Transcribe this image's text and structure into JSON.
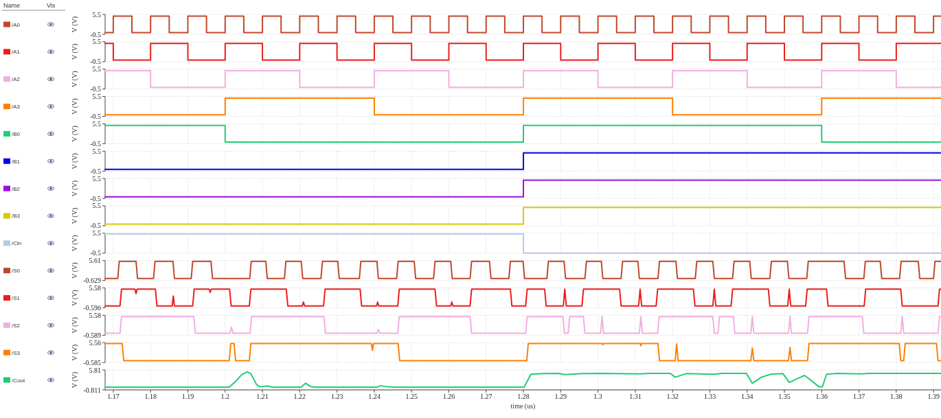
{
  "chart_data": [
    {
      "type": "step",
      "ylabel": "V (V)",
      "annotations": [
        "Name",
        "Vis"
      ],
      "xlim": [
        1.1678,
        1.392
      ],
      "xticks": [
        1.17,
        1.18,
        1.19,
        1.2,
        1.21,
        1.22,
        1.23,
        1.24,
        1.25,
        1.26,
        1.27,
        1.28,
        1.29,
        1.3,
        1.31,
        1.32,
        1.33,
        1.34,
        1.35,
        1.36,
        1.37,
        1.38,
        1.39
      ],
      "ylim": [
        -0.5,
        5.5
      ],
      "yticks": [
        -0.5,
        5.5
      ],
      "grid": true,
      "legend": "left",
      "tick_labels": "y",
      "series": [
        {
          "name": "/A0",
          "color": "#c0482c",
          "x": [
            1.1678,
            1.17,
            1.175,
            1.18,
            1.185,
            1.19,
            1.195,
            1.2,
            1.205,
            1.21,
            1.215,
            1.22,
            1.225,
            1.23,
            1.235,
            1.24,
            1.245,
            1.25,
            1.255,
            1.26,
            1.265,
            1.27,
            1.275,
            1.28,
            1.285,
            1.29,
            1.295,
            1.3,
            1.305,
            1.31,
            1.315,
            1.32,
            1.325,
            1.33,
            1.335,
            1.34,
            1.345,
            1.35,
            1.355,
            1.36,
            1.365,
            1.37,
            1.375,
            1.38,
            1.385,
            1.39,
            1.392
          ],
          "values": [
            0,
            5,
            0,
            5,
            0,
            5,
            0,
            5,
            0,
            5,
            0,
            5,
            0,
            5,
            0,
            5,
            0,
            5,
            0,
            5,
            0,
            5,
            0,
            5,
            0,
            5,
            0,
            5,
            0,
            5,
            0,
            5,
            0,
            5,
            0,
            5,
            0,
            5,
            0,
            5,
            0,
            5,
            0,
            5,
            0,
            5,
            5
          ]
        }
      ]
    },
    {
      "type": "step",
      "ylabel": "V (V)",
      "xlim": [
        1.1678,
        1.392
      ],
      "xticks": [
        1.17,
        1.18,
        1.19,
        1.2,
        1.21,
        1.22,
        1.23,
        1.24,
        1.25,
        1.26,
        1.27,
        1.28,
        1.29,
        1.3,
        1.31,
        1.32,
        1.33,
        1.34,
        1.35,
        1.36,
        1.37,
        1.38,
        1.39
      ],
      "ylim": [
        -0.5,
        5.5
      ],
      "yticks": [
        -0.5,
        5.5
      ],
      "grid": true,
      "legend": "left",
      "tick_labels": "y",
      "series": [
        {
          "name": "/A1",
          "color": "#ee1c1c",
          "x": [
            1.1678,
            1.17,
            1.18,
            1.19,
            1.2,
            1.21,
            1.22,
            1.23,
            1.24,
            1.25,
            1.26,
            1.27,
            1.28,
            1.29,
            1.3,
            1.31,
            1.32,
            1.33,
            1.34,
            1.35,
            1.36,
            1.37,
            1.38,
            1.392
          ],
          "values": [
            5,
            0,
            5,
            0,
            5,
            0,
            5,
            0,
            5,
            0,
            5,
            0,
            5,
            0,
            5,
            0,
            5,
            0,
            5,
            0,
            5,
            0,
            5,
            5
          ]
        }
      ]
    },
    {
      "type": "step",
      "ylabel": "V (V)",
      "xlim": [
        1.1678,
        1.392
      ],
      "xticks": [
        1.17,
        1.18,
        1.19,
        1.2,
        1.21,
        1.22,
        1.23,
        1.24,
        1.25,
        1.26,
        1.27,
        1.28,
        1.29,
        1.3,
        1.31,
        1.32,
        1.33,
        1.34,
        1.35,
        1.36,
        1.37,
        1.38,
        1.39
      ],
      "ylim": [
        -0.5,
        5.5
      ],
      "yticks": [
        -0.5,
        5.5
      ],
      "grid": true,
      "legend": "left",
      "tick_labels": "y",
      "series": [
        {
          "name": "/A2",
          "color": "#f0b0e0",
          "x": [
            1.1678,
            1.18,
            1.2,
            1.22,
            1.24,
            1.26,
            1.28,
            1.3,
            1.32,
            1.34,
            1.36,
            1.38,
            1.392
          ],
          "values": [
            5,
            0,
            5,
            0,
            5,
            0,
            5,
            0,
            5,
            0,
            5,
            0,
            0
          ]
        }
      ]
    },
    {
      "type": "step",
      "ylabel": "V (V)",
      "xlim": [
        1.1678,
        1.392
      ],
      "xticks": [
        1.17,
        1.18,
        1.19,
        1.2,
        1.21,
        1.22,
        1.23,
        1.24,
        1.25,
        1.26,
        1.27,
        1.28,
        1.29,
        1.3,
        1.31,
        1.32,
        1.33,
        1.34,
        1.35,
        1.36,
        1.37,
        1.38,
        1.39
      ],
      "ylim": [
        -0.5,
        5.5
      ],
      "yticks": [
        -0.5,
        5.5
      ],
      "grid": true,
      "legend": "left",
      "tick_labels": "y",
      "series": [
        {
          "name": "/A3",
          "color": "#ff8000",
          "x": [
            1.1678,
            1.2,
            1.24,
            1.28,
            1.32,
            1.36,
            1.392
          ],
          "values": [
            0,
            5,
            0,
            5,
            0,
            5,
            5
          ]
        }
      ]
    },
    {
      "type": "step",
      "ylabel": "V (V)",
      "xlim": [
        1.1678,
        1.392
      ],
      "xticks": [
        1.17,
        1.18,
        1.19,
        1.2,
        1.21,
        1.22,
        1.23,
        1.24,
        1.25,
        1.26,
        1.27,
        1.28,
        1.29,
        1.3,
        1.31,
        1.32,
        1.33,
        1.34,
        1.35,
        1.36,
        1.37,
        1.38,
        1.39
      ],
      "ylim": [
        -0.5,
        5.5
      ],
      "yticks": [
        -0.5,
        5.5
      ],
      "grid": true,
      "legend": "left",
      "tick_labels": "y",
      "series": [
        {
          "name": "/B0",
          "color": "#22cc77",
          "x": [
            1.1678,
            1.2,
            1.28,
            1.36,
            1.392
          ],
          "values": [
            5,
            0,
            5,
            0,
            0
          ]
        }
      ]
    },
    {
      "type": "step",
      "ylabel": "V (V)",
      "xlim": [
        1.1678,
        1.392
      ],
      "xticks": [
        1.17,
        1.18,
        1.19,
        1.2,
        1.21,
        1.22,
        1.23,
        1.24,
        1.25,
        1.26,
        1.27,
        1.28,
        1.29,
        1.3,
        1.31,
        1.32,
        1.33,
        1.34,
        1.35,
        1.36,
        1.37,
        1.38,
        1.39
      ],
      "ylim": [
        -0.5,
        5.5
      ],
      "yticks": [
        -0.5,
        5.5
      ],
      "grid": true,
      "legend": "left",
      "tick_labels": "y",
      "series": [
        {
          "name": "/B1",
          "color": "#0000ee",
          "x": [
            1.1678,
            1.28,
            1.392
          ],
          "values": [
            0,
            5,
            5
          ]
        }
      ]
    },
    {
      "type": "step",
      "ylabel": "V (V)",
      "xlim": [
        1.1678,
        1.392
      ],
      "xticks": [
        1.17,
        1.18,
        1.19,
        1.2,
        1.21,
        1.22,
        1.23,
        1.24,
        1.25,
        1.26,
        1.27,
        1.28,
        1.29,
        1.3,
        1.31,
        1.32,
        1.33,
        1.34,
        1.35,
        1.36,
        1.37,
        1.38,
        1.39
      ],
      "ylim": [
        -0.5,
        5.5
      ],
      "yticks": [
        -0.5,
        5.5
      ],
      "grid": true,
      "legend": "left",
      "tick_labels": "y",
      "series": [
        {
          "name": "/B2",
          "color": "#9a10e0",
          "x": [
            1.1678,
            1.28,
            1.392
          ],
          "values": [
            0,
            5,
            5
          ]
        }
      ]
    },
    {
      "type": "step",
      "ylabel": "V (V)",
      "xlim": [
        1.1678,
        1.392
      ],
      "xticks": [
        1.17,
        1.18,
        1.19,
        1.2,
        1.21,
        1.22,
        1.23,
        1.24,
        1.25,
        1.26,
        1.27,
        1.28,
        1.29,
        1.3,
        1.31,
        1.32,
        1.33,
        1.34,
        1.35,
        1.36,
        1.37,
        1.38,
        1.39
      ],
      "ylim": [
        -0.5,
        5.5
      ],
      "yticks": [
        -0.5,
        5.5
      ],
      "grid": true,
      "legend": "left",
      "tick_labels": "y",
      "series": [
        {
          "name": "/B3",
          "color": "#d8c800",
          "x": [
            1.1678,
            1.28,
            1.392
          ],
          "values": [
            0,
            5,
            5
          ]
        }
      ]
    },
    {
      "type": "step",
      "ylabel": "V (V)",
      "xlim": [
        1.1678,
        1.392
      ],
      "xticks": [
        1.17,
        1.18,
        1.19,
        1.2,
        1.21,
        1.22,
        1.23,
        1.24,
        1.25,
        1.26,
        1.27,
        1.28,
        1.29,
        1.3,
        1.31,
        1.32,
        1.33,
        1.34,
        1.35,
        1.36,
        1.37,
        1.38,
        1.39
      ],
      "ylim": [
        -0.5,
        5.5
      ],
      "yticks": [
        -0.5,
        5.5
      ],
      "grid": true,
      "legend": "left",
      "tick_labels": "y",
      "series": [
        {
          "name": "/Cin",
          "color": "#b8c8e0",
          "x": [
            1.1678,
            1.28,
            1.392
          ],
          "values": [
            5.3,
            -0.5,
            -0.5
          ]
        }
      ]
    },
    {
      "type": "line",
      "ylabel": "V (V)",
      "xlim": [
        1.1678,
        1.392
      ],
      "xticks": [
        1.17,
        1.18,
        1.19,
        1.2,
        1.21,
        1.22,
        1.23,
        1.24,
        1.25,
        1.26,
        1.27,
        1.28,
        1.29,
        1.3,
        1.31,
        1.32,
        1.33,
        1.34,
        1.35,
        1.36,
        1.37,
        1.38,
        1.39
      ],
      "ylim": [
        -0.629,
        5.61
      ],
      "yticks": [
        -0.629,
        5.61
      ],
      "grid": true,
      "legend": "left",
      "tick_labels": "y",
      "series": [
        {
          "name": "/S0",
          "color": "#c0482c",
          "x": [
            1.1678,
            1.1712,
            1.1716,
            1.1761,
            1.1765,
            1.1808,
            1.1812,
            1.186,
            1.1864,
            1.1909,
            1.1913,
            1.1962,
            1.1966,
            1.2066,
            1.207,
            1.2109,
            1.2113,
            1.2159,
            1.2163,
            1.2204,
            1.2208,
            1.2257,
            1.2261,
            1.2302,
            1.2306,
            1.236,
            1.2364,
            1.2407,
            1.2411,
            1.246,
            1.2464,
            1.2507,
            1.2511,
            1.2559,
            1.2563,
            1.2605,
            1.2609,
            1.2657,
            1.2661,
            1.2709,
            1.2713,
            1.2761,
            1.2765,
            1.2799,
            1.2803,
            1.2863,
            1.2867,
            1.2909,
            1.2913,
            1.2965,
            1.2969,
            1.3009,
            1.3013,
            1.3062,
            1.3066,
            1.3107,
            1.3111,
            1.3161,
            1.3165,
            1.3209,
            1.3213,
            1.3261,
            1.3265,
            1.3308,
            1.3312,
            1.3361,
            1.3365,
            1.3407,
            1.3411,
            1.3461,
            1.3465,
            1.3508,
            1.3512,
            1.356,
            1.3564,
            1.366,
            1.3664,
            1.3713,
            1.3717,
            1.3757,
            1.3761,
            1.3809,
            1.3813,
            1.3859,
            1.3863,
            1.39,
            1.3904,
            1.392
          ],
          "values": [
            0,
            0,
            5.4,
            5.4,
            0,
            0,
            5.4,
            5.4,
            0,
            0,
            5.4,
            5.4,
            0,
            0,
            5.4,
            5.4,
            0,
            0,
            5.4,
            5.4,
            0,
            0,
            5.4,
            5.4,
            0,
            0,
            5.4,
            5.4,
            0,
            0,
            5.4,
            5.4,
            0,
            0,
            5.4,
            5.4,
            0,
            0,
            5.4,
            5.4,
            0,
            0,
            5.4,
            5.4,
            0,
            0,
            5.4,
            5.4,
            0,
            0,
            5.4,
            5.4,
            0,
            0,
            5.4,
            5.4,
            0,
            0,
            5.4,
            5.4,
            0,
            0,
            5.4,
            5.4,
            0,
            0,
            5.4,
            5.4,
            0,
            0,
            5.4,
            5.4,
            0,
            0,
            5.4,
            5.4,
            0,
            0,
            5.4,
            5.4,
            0,
            0,
            5.4,
            5.4,
            0,
            0,
            5.4,
            5.4
          ]
        }
      ]
    },
    {
      "type": "line",
      "ylabel": "V (V)",
      "xlim": [
        1.1678,
        1.392
      ],
      "xticks": [
        1.17,
        1.18,
        1.19,
        1.2,
        1.21,
        1.22,
        1.23,
        1.24,
        1.25,
        1.26,
        1.27,
        1.28,
        1.29,
        1.3,
        1.31,
        1.32,
        1.33,
        1.34,
        1.35,
        1.36,
        1.37,
        1.38,
        1.39
      ],
      "ylim": [
        -0.596,
        5.58
      ],
      "yticks": [
        -0.596,
        5.58
      ],
      "grid": true,
      "legend": "left",
      "tick_labels": "y",
      "series": [
        {
          "name": "/S1",
          "color": "#ee1c1c",
          "x": [
            1.1678,
            1.1718,
            1.1722,
            1.1758,
            1.1761,
            1.1764,
            1.1813,
            1.1817,
            1.1858,
            1.1861,
            1.1864,
            1.1913,
            1.1917,
            1.1957,
            1.196,
            1.1963,
            1.2012,
            1.2016,
            1.2065,
            1.2069,
            1.2164,
            1.2168,
            1.2207,
            1.221,
            1.2213,
            1.2264,
            1.2268,
            1.2362,
            1.2366,
            1.2406,
            1.2409,
            1.2412,
            1.2463,
            1.2467,
            1.2563,
            1.2567,
            1.2605,
            1.2608,
            1.2611,
            1.2657,
            1.2661,
            1.2765,
            1.2769,
            1.2806,
            1.281,
            1.2857,
            1.2861,
            1.2907,
            1.2911,
            1.2915,
            1.2957,
            1.2961,
            1.3058,
            1.3062,
            1.3109,
            1.3113,
            1.3117,
            1.3156,
            1.316,
            1.3256,
            1.326,
            1.3308,
            1.3312,
            1.3316,
            1.3357,
            1.3361,
            1.3457,
            1.3461,
            1.3509,
            1.3513,
            1.3517,
            1.3557,
            1.3561,
            1.3613,
            1.3617,
            1.3714,
            1.3718,
            1.3812,
            1.3816,
            1.3912,
            1.3916,
            1.392
          ],
          "values": [
            0,
            0,
            5.2,
            5.2,
            3.8,
            5.2,
            5.2,
            0,
            0,
            3.1,
            0,
            0,
            5.2,
            5.2,
            4.2,
            5.2,
            5.2,
            0,
            0,
            5.2,
            5.2,
            0,
            0,
            1.2,
            0,
            0,
            5.2,
            5.2,
            0,
            0,
            1.2,
            0,
            0,
            5.2,
            5.2,
            0,
            0,
            1.2,
            0,
            0,
            5.2,
            5.2,
            0,
            0,
            5.2,
            5.2,
            0,
            0,
            5.2,
            0,
            0,
            5.2,
            5.2,
            0,
            0,
            5.2,
            0,
            0,
            5.2,
            5.2,
            0,
            0,
            5.2,
            0,
            0,
            5.2,
            5.2,
            0,
            0,
            5.2,
            0,
            0,
            5.2,
            5.2,
            0,
            0,
            5.2,
            5.2,
            0,
            0,
            5.2,
            5.2
          ]
        }
      ]
    },
    {
      "type": "line",
      "ylabel": "V (V)",
      "xlim": [
        1.1678,
        1.392
      ],
      "xticks": [
        1.17,
        1.18,
        1.19,
        1.2,
        1.21,
        1.22,
        1.23,
        1.24,
        1.25,
        1.26,
        1.27,
        1.28,
        1.29,
        1.3,
        1.31,
        1.32,
        1.33,
        1.34,
        1.35,
        1.36,
        1.37,
        1.38,
        1.39
      ],
      "ylim": [
        -0.589,
        5.58
      ],
      "yticks": [
        -0.589,
        5.58
      ],
      "grid": true,
      "legend": "left",
      "tick_labels": "y",
      "series": [
        {
          "name": "/S2",
          "color": "#f0b0e0",
          "x": [
            1.1678,
            1.1718,
            1.1722,
            1.1916,
            1.192,
            1.2013,
            1.2017,
            1.2021,
            1.2067,
            1.2071,
            1.2265,
            1.2269,
            1.2407,
            1.2411,
            1.2415,
            1.2463,
            1.2467,
            1.2657,
            1.2661,
            1.2806,
            1.281,
            1.2906,
            1.291,
            1.292,
            1.2924,
            1.2961,
            1.2965,
            1.3007,
            1.3011,
            1.3015,
            1.3111,
            1.3115,
            1.3119,
            1.316,
            1.3164,
            1.3308,
            1.3312,
            1.3322,
            1.3326,
            1.3363,
            1.3367,
            1.341,
            1.3414,
            1.3418,
            1.3511,
            1.3515,
            1.3519,
            1.3562,
            1.3566,
            1.3709,
            1.3713,
            1.3812,
            1.3816,
            1.382,
            1.3912,
            1.3916,
            1.392
          ],
          "values": [
            0,
            0,
            5.2,
            5.2,
            0,
            0,
            1.9,
            0,
            0,
            5.2,
            5.2,
            0,
            0,
            1.2,
            0,
            0,
            5.2,
            5.2,
            0,
            0,
            5.2,
            5.2,
            0,
            0,
            5.2,
            5.2,
            0,
            0,
            5.2,
            0,
            0,
            5.2,
            0,
            0,
            5.2,
            5.2,
            0,
            0,
            5.2,
            5.2,
            0,
            0,
            5.2,
            0,
            0,
            5.2,
            0,
            0,
            5.2,
            5.2,
            0,
            0,
            5.2,
            0,
            0,
            5.2,
            5.2
          ]
        }
      ]
    },
    {
      "type": "line",
      "ylabel": "V (V)",
      "xlim": [
        1.1678,
        1.392
      ],
      "xticks": [
        1.17,
        1.18,
        1.19,
        1.2,
        1.21,
        1.22,
        1.23,
        1.24,
        1.25,
        1.26,
        1.27,
        1.28,
        1.29,
        1.3,
        1.31,
        1.32,
        1.33,
        1.34,
        1.35,
        1.36,
        1.37,
        1.38,
        1.39
      ],
      "ylim": [
        -0.585,
        5.56
      ],
      "yticks": [
        -0.585,
        5.56
      ],
      "grid": true,
      "legend": "left",
      "tick_labels": "y",
      "series": [
        {
          "name": "/S3",
          "color": "#ff8000",
          "x": [
            1.1678,
            1.1724,
            1.1728,
            1.2011,
            1.2015,
            1.2024,
            1.2028,
            1.2065,
            1.2069,
            1.2392,
            1.2395,
            1.2398,
            1.2464,
            1.2468,
            1.2809,
            1.2813,
            1.3011,
            1.3013,
            1.3015,
            1.3113,
            1.3115,
            1.3117,
            1.3161,
            1.3165,
            1.3207,
            1.3211,
            1.3215,
            1.341,
            1.3414,
            1.3418,
            1.3511,
            1.3515,
            1.3519,
            1.3562,
            1.3566,
            1.3808,
            1.3812,
            1.382,
            1.3824,
            1.3908,
            1.3912,
            1.392
          ],
          "values": [
            5.3,
            5.3,
            0,
            0,
            5.3,
            5.3,
            0,
            0,
            5.3,
            5.3,
            3.2,
            5.3,
            5.3,
            0,
            0,
            5.3,
            5.3,
            4.9,
            5.3,
            5.3,
            4.6,
            5.3,
            5.3,
            0,
            0,
            5.2,
            0,
            0,
            3.9,
            0,
            0,
            4.1,
            0,
            0,
            5.3,
            5.3,
            0,
            0,
            5.3,
            5.3,
            0,
            0
          ]
        }
      ]
    },
    {
      "type": "line",
      "ylabel": "V (V)",
      "xlabel": "time (us)",
      "xlim": [
        1.1678,
        1.392
      ],
      "xticks": [
        1.17,
        1.18,
        1.19,
        1.2,
        1.21,
        1.22,
        1.23,
        1.24,
        1.25,
        1.26,
        1.27,
        1.28,
        1.29,
        1.3,
        1.31,
        1.32,
        1.33,
        1.34,
        1.35,
        1.36,
        1.37,
        1.38,
        1.39
      ],
      "ylim": [
        -0.811,
        5.81
      ],
      "yticks": [
        -0.811,
        5.81
      ],
      "grid": true,
      "legend": "left",
      "series": [
        {
          "name": "/Cout",
          "color": "#22cc77",
          "x": [
            1.1678,
            1.2011,
            1.2028,
            1.2044,
            1.2059,
            1.2069,
            1.2084,
            1.2093,
            1.2114,
            1.2126,
            1.2204,
            1.2216,
            1.2229,
            1.2241,
            1.2407,
            1.2417,
            1.2434,
            1.2454,
            1.2802,
            1.282,
            1.2853,
            1.2893,
            1.2911,
            1.2959,
            1.3011,
            1.3113,
            1.3137,
            1.3194,
            1.3207,
            1.3236,
            1.3312,
            1.3333,
            1.3398,
            1.3414,
            1.3438,
            1.3463,
            1.3496,
            1.3513,
            1.3536,
            1.3554,
            1.3577,
            1.3593,
            1.3602,
            1.3613,
            1.3642,
            1.3707,
            1.3724,
            1.392
          ],
          "values": [
            0.1,
            0.1,
            2.0,
            4.2,
            5.2,
            4.6,
            1.0,
            0.2,
            0.5,
            0.1,
            0.1,
            1.4,
            0.3,
            0.1,
            0.1,
            0.6,
            0.2,
            0.1,
            0.1,
            4.4,
            4.6,
            4.7,
            4.3,
            4.6,
            4.7,
            4.5,
            4.7,
            4.7,
            3.4,
            4.6,
            4.4,
            4.7,
            4.7,
            1.4,
            3.4,
            4.4,
            4.6,
            1.7,
            3.0,
            4.0,
            1.8,
            0.2,
            0.2,
            4.4,
            4.7,
            4.5,
            4.7,
            4.7
          ]
        }
      ]
    }
  ]
}
